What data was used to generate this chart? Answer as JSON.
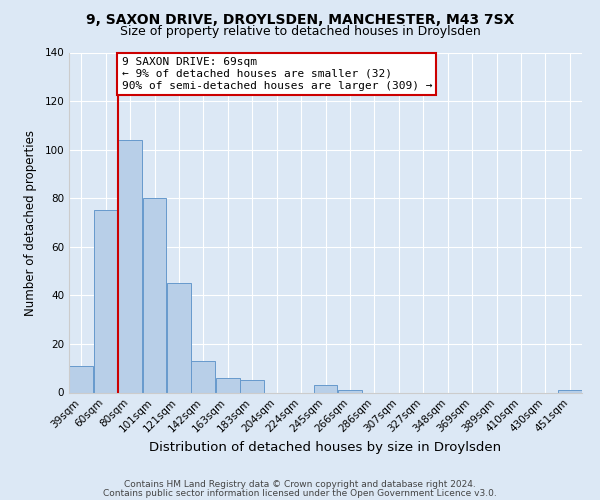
{
  "title": "9, SAXON DRIVE, DROYLSDEN, MANCHESTER, M43 7SX",
  "subtitle": "Size of property relative to detached houses in Droylsden",
  "xlabel": "Distribution of detached houses by size in Droylsden",
  "ylabel": "Number of detached properties",
  "footer_line1": "Contains HM Land Registry data © Crown copyright and database right 2024.",
  "footer_line2": "Contains public sector information licensed under the Open Government Licence v3.0.",
  "bin_labels": [
    "39sqm",
    "60sqm",
    "80sqm",
    "101sqm",
    "121sqm",
    "142sqm",
    "163sqm",
    "183sqm",
    "204sqm",
    "224sqm",
    "245sqm",
    "266sqm",
    "286sqm",
    "307sqm",
    "327sqm",
    "348sqm",
    "369sqm",
    "389sqm",
    "410sqm",
    "430sqm",
    "451sqm"
  ],
  "bar_values": [
    11,
    75,
    104,
    80,
    45,
    13,
    6,
    5,
    0,
    0,
    3,
    1,
    0,
    0,
    0,
    0,
    0,
    0,
    0,
    0,
    1
  ],
  "bar_color": "#b8cfe8",
  "bar_edge_color": "#6699cc",
  "vline_color": "#cc0000",
  "vline_position": 1.5,
  "annotation_line1": "9 SAXON DRIVE: 69sqm",
  "annotation_line2": "← 9% of detached houses are smaller (32)",
  "annotation_line3": "90% of semi-detached houses are larger (309) →",
  "annotation_box_facecolor": "#ffffff",
  "annotation_box_edgecolor": "#cc0000",
  "ylim": [
    0,
    140
  ],
  "yticks": [
    0,
    20,
    40,
    60,
    80,
    100,
    120,
    140
  ],
  "background_color": "#dce8f5",
  "axes_facecolor": "#dce8f5",
  "grid_color": "#ffffff",
  "title_fontsize": 10,
  "subtitle_fontsize": 9,
  "xlabel_fontsize": 9.5,
  "ylabel_fontsize": 8.5,
  "tick_fontsize": 7.5,
  "annotation_fontsize": 8,
  "footer_fontsize": 6.5
}
